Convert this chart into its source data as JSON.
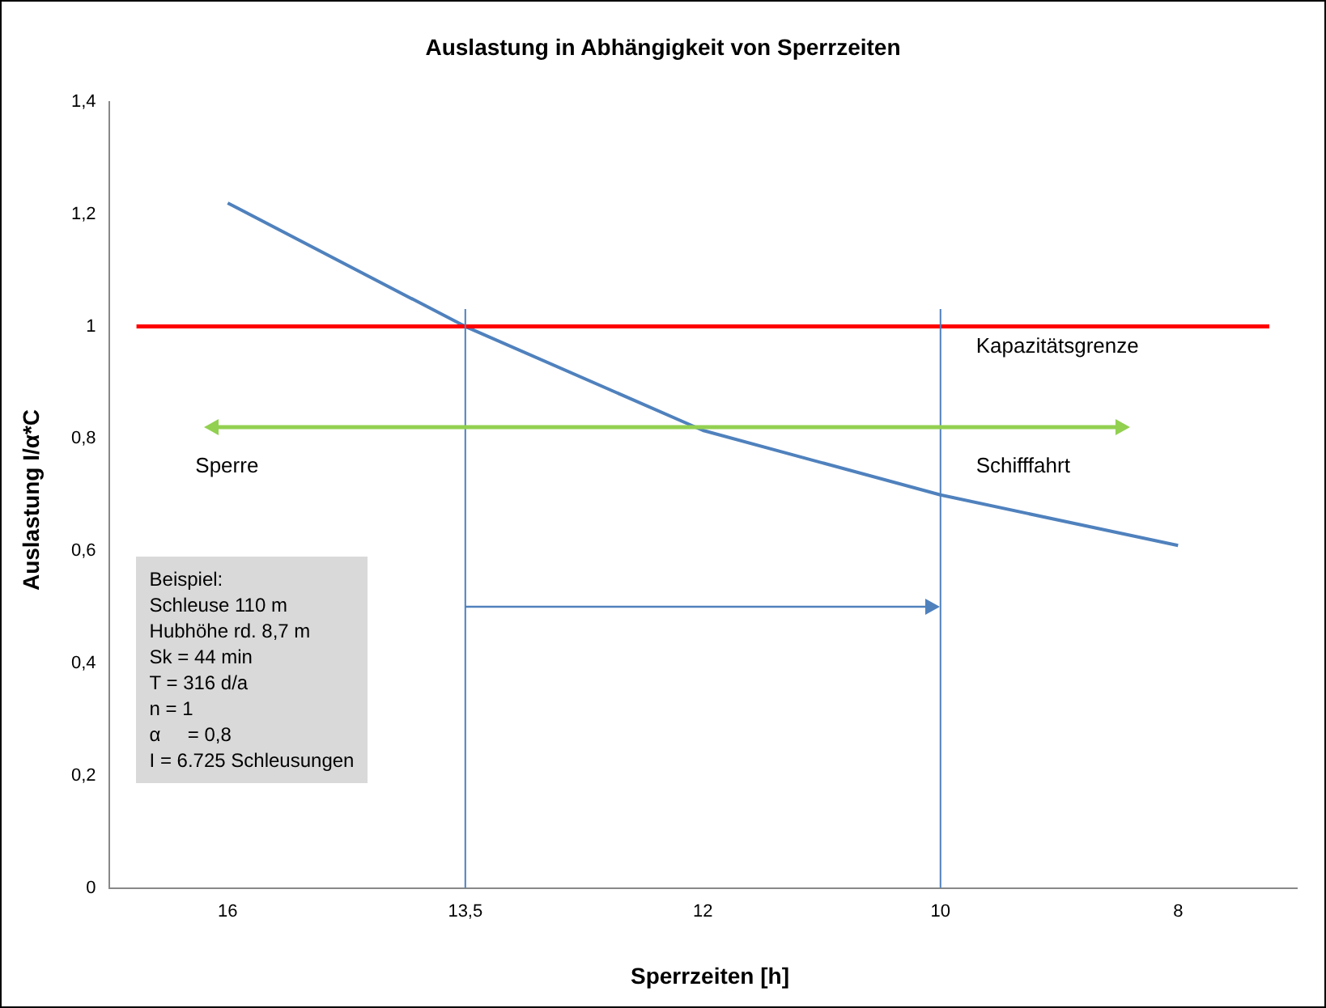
{
  "chart_data": {
    "type": "line",
    "title": "Auslastung in Abhängigkeit von Sperrzeiten",
    "xlabel": "Sperrzeiten [h]",
    "ylabel": "Auslastung I/α*C",
    "categories": [
      "16",
      "13,5",
      "12",
      "10",
      "8"
    ],
    "series": [
      {
        "color": "#4f81bd",
        "values": [
          1.22,
          1.0,
          0.815,
          0.7,
          0.61
        ]
      }
    ],
    "ylim": [
      0,
      1.4
    ],
    "yticks": [
      0,
      {
        "value": 0.2,
        "label": "0,2"
      },
      {
        "value": 0.4,
        "label": "0,4"
      },
      {
        "value": 0.6,
        "label": "0,6"
      },
      {
        "value": 0.8,
        "label": "0,8"
      },
      1,
      {
        "value": 1.2,
        "label": "1,2"
      },
      {
        "value": 1.4,
        "label": "1,4"
      }
    ],
    "marker": "none",
    "line_style": "solid",
    "ref_lines": [
      {
        "axis": "y",
        "value": 1,
        "label": "Kapazitätsgrenze",
        "color": "#ff0000"
      },
      {
        "axis": "x",
        "value": "13,5",
        "color": "#4f81bd"
      },
      {
        "axis": "x",
        "value": "10",
        "color": "#4f81bd"
      }
    ],
    "annotations": [
      "Sperre",
      "Schifffahrt",
      "Beispiel:\nSchleuse 110 m\nHubhöhe rd. 8,7 m\nSk = 44 min\nT = 316 d/a\nn = 1\nα     = 0,8\nI = 6.725 Schleusungen"
    ]
  }
}
